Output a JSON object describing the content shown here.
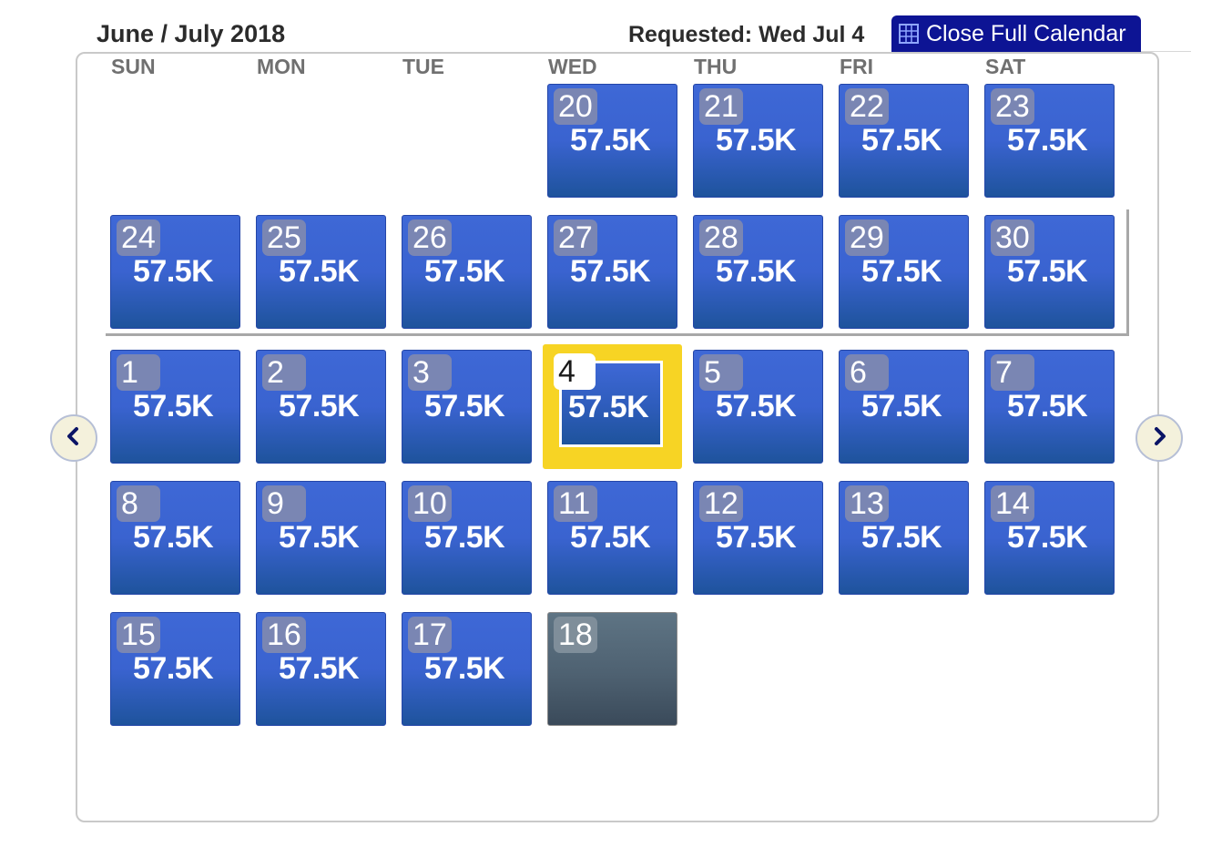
{
  "header": {
    "month_title": "June / July 2018",
    "requested": "Requested: Wed Jul 4",
    "close_button_label": "Close Full Calendar"
  },
  "weekdays": [
    "SUN",
    "MON",
    "TUE",
    "WED",
    "THU",
    "FRI",
    "SAT"
  ],
  "days": [
    {
      "num": "20",
      "price": "57.5K"
    },
    {
      "num": "21",
      "price": "57.5K"
    },
    {
      "num": "22",
      "price": "57.5K"
    },
    {
      "num": "23",
      "price": "57.5K"
    },
    {
      "num": "24",
      "price": "57.5K"
    },
    {
      "num": "25",
      "price": "57.5K"
    },
    {
      "num": "26",
      "price": "57.5K"
    },
    {
      "num": "27",
      "price": "57.5K"
    },
    {
      "num": "28",
      "price": "57.5K"
    },
    {
      "num": "29",
      "price": "57.5K"
    },
    {
      "num": "30",
      "price": "57.5K"
    },
    {
      "num": "1",
      "price": "57.5K"
    },
    {
      "num": "2",
      "price": "57.5K"
    },
    {
      "num": "3",
      "price": "57.5K"
    },
    {
      "num": "4",
      "price": "57.5K",
      "selected": true
    },
    {
      "num": "5",
      "price": "57.5K"
    },
    {
      "num": "6",
      "price": "57.5K"
    },
    {
      "num": "7",
      "price": "57.5K"
    },
    {
      "num": "8",
      "price": "57.5K"
    },
    {
      "num": "9",
      "price": "57.5K"
    },
    {
      "num": "10",
      "price": "57.5K"
    },
    {
      "num": "11",
      "price": "57.5K"
    },
    {
      "num": "12",
      "price": "57.5K"
    },
    {
      "num": "13",
      "price": "57.5K"
    },
    {
      "num": "14",
      "price": "57.5K"
    },
    {
      "num": "15",
      "price": "57.5K"
    },
    {
      "num": "16",
      "price": "57.5K"
    },
    {
      "num": "17",
      "price": "57.5K"
    },
    {
      "num": "18",
      "price": "",
      "disabled": true
    }
  ],
  "colors": {
    "cell_blue": "#3e68d6",
    "cell_dark": "#1e539c",
    "selected_highlight": "#f7d424",
    "close_button": "#0d1494",
    "disabled_cell": "#4e6171"
  },
  "icons": {
    "close_button_icon": "calendar-grid-icon",
    "prev": "chevron-left-icon",
    "next": "chevron-right-icon"
  }
}
